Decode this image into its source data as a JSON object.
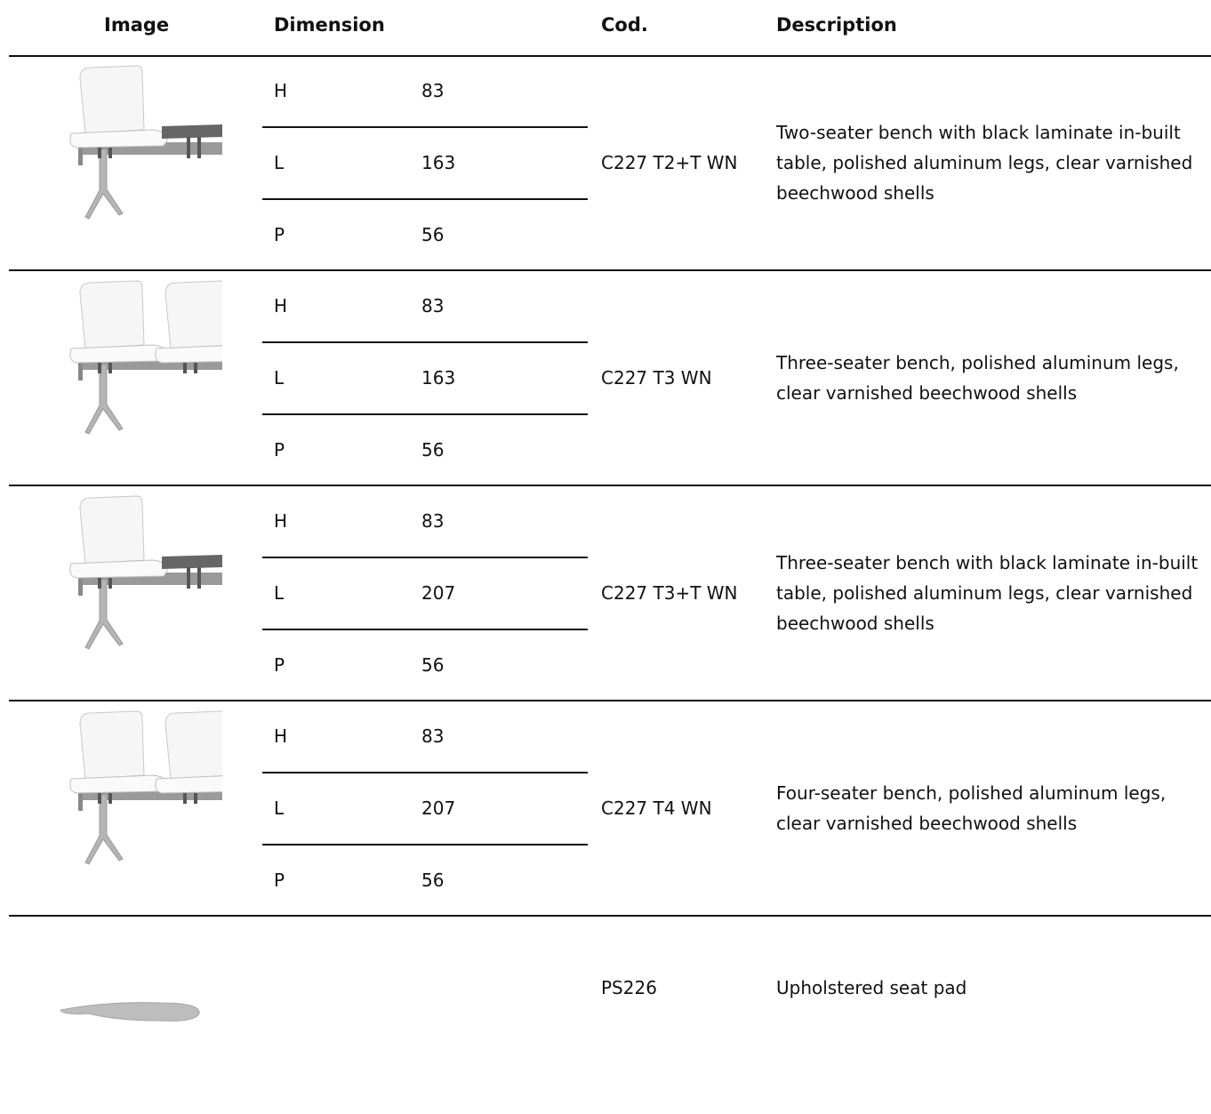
{
  "header": {
    "image": "Image",
    "dimension": "Dimension",
    "code": "Cod.",
    "description": "Description"
  },
  "rows": [
    {
      "dimensions": [
        {
          "label": "H",
          "value": 83
        },
        {
          "label": "L",
          "value": 163
        },
        {
          "label": "P",
          "value": 56
        }
      ],
      "code": "C227 T2+T WN",
      "description": "Two-seater bench with black laminate in-built table, polished aluminum legs, clear varnished beechwood shells"
    },
    {
      "dimensions": [
        {
          "label": "H",
          "value": 83
        },
        {
          "label": "L",
          "value": 163
        },
        {
          "label": "P",
          "value": 56
        }
      ],
      "code": "C227 T3 WN",
      "description": "Three-seater bench, polished aluminum legs, clear varnished beechwood shells"
    },
    {
      "dimensions": [
        {
          "label": "H",
          "value": 83
        },
        {
          "label": "L",
          "value": 207
        },
        {
          "label": "P",
          "value": 56
        }
      ],
      "code": "C227 T3+T WN",
      "description": "Three-seater bench with black laminate in-built table, polished aluminum legs, clear varnished beechwood shells"
    },
    {
      "dimensions": [
        {
          "label": "H",
          "value": 83
        },
        {
          "label": "L",
          "value": 207
        },
        {
          "label": "P",
          "value": 56
        }
      ],
      "code": "C227 T4 WN",
      "description": "Four-seater bench, polished aluminum legs, clear varnished beechwood shells"
    },
    {
      "dimensions": [],
      "code": "PS226",
      "description": "Upholstered seat pad"
    }
  ]
}
